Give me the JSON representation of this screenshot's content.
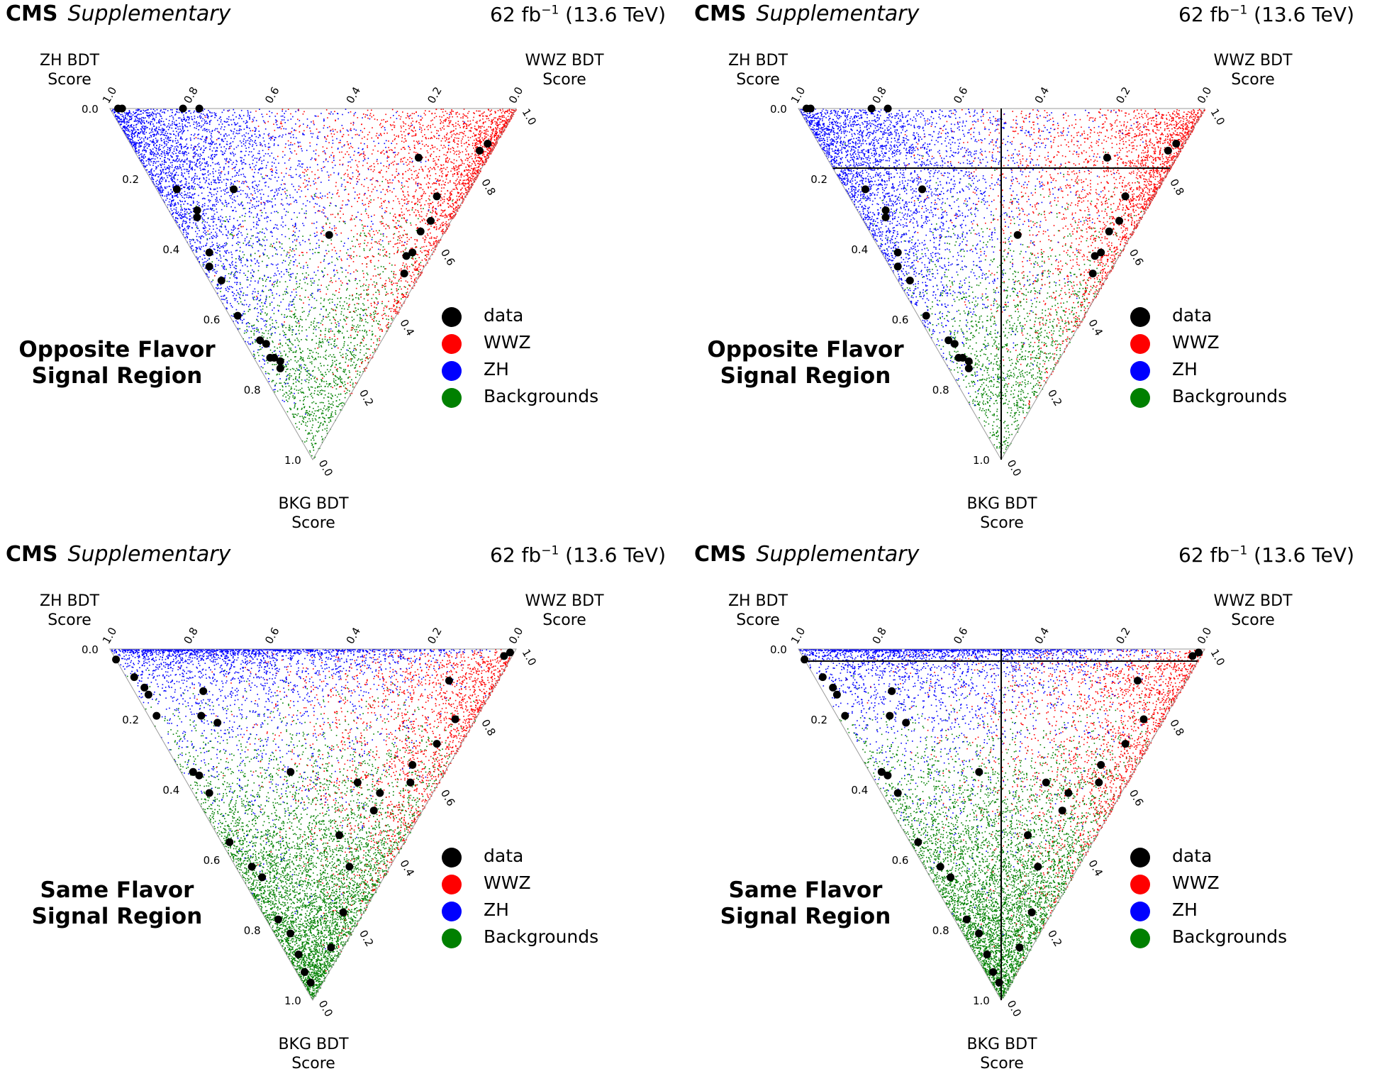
{
  "header": {
    "cms": "CMS",
    "supplementary": "Supplementary",
    "lumi": "62 fb",
    "lumi_exp": "−1",
    "energy": "(13.6 TeV)"
  },
  "vertex_labels": {
    "zh_1": "ZH BDT",
    "zh_2": "Score",
    "wwz_1": "WWZ BDT",
    "wwz_2": "Score",
    "bkg_1": "BKG BDT",
    "bkg_2": "Score"
  },
  "legend": [
    {
      "label": "data",
      "color": "#000000"
    },
    {
      "label": "WWZ",
      "color": "#ff0000"
    },
    {
      "label": "ZH",
      "color": "#0000ff"
    },
    {
      "label": "Backgrounds",
      "color": "#008000"
    }
  ],
  "ticks": {
    "top": [
      "1.0",
      "0.8",
      "0.6",
      "0.4",
      "0.2",
      "0.0"
    ],
    "left": [
      "0.0",
      "0.2",
      "0.4",
      "0.6",
      "0.8",
      "1.0"
    ],
    "right": [
      "1.0",
      "0.8",
      "0.6",
      "0.4",
      "0.2",
      "0.0"
    ]
  },
  "chart_data": [
    {
      "type": "scatter",
      "projection": "ternary",
      "axes": [
        "ZH BDT Score",
        "WWZ BDT Score",
        "BKG BDT Score"
      ],
      "region_line1": "Opposite Flavor",
      "region_line2": "Signal Region",
      "cut_lines": false,
      "mc_densities": {
        "WWZ": "high near WWZ vertex",
        "ZH": "high near ZH vertex",
        "Backgrounds": "concentrated near BKG vertex"
      },
      "data_points": [
        [
          0.98,
          0.02,
          0.0
        ],
        [
          0.97,
          0.03,
          0.0
        ],
        [
          0.82,
          0.18,
          0.0
        ],
        [
          0.78,
          0.22,
          0.0
        ],
        [
          0.58,
          0.19,
          0.23
        ],
        [
          0.64,
          0.07,
          0.29
        ],
        [
          0.72,
          0.05,
          0.23
        ],
        [
          0.63,
          0.06,
          0.31
        ],
        [
          0.55,
          0.04,
          0.41
        ],
        [
          0.53,
          0.02,
          0.45
        ],
        [
          0.48,
          0.03,
          0.49
        ],
        [
          0.39,
          0.02,
          0.59
        ],
        [
          0.3,
          0.04,
          0.66
        ],
        [
          0.28,
          0.05,
          0.67
        ],
        [
          0.25,
          0.04,
          0.71
        ],
        [
          0.24,
          0.05,
          0.71
        ],
        [
          0.22,
          0.06,
          0.72
        ],
        [
          0.21,
          0.05,
          0.74
        ],
        [
          0.02,
          0.88,
          0.1
        ],
        [
          0.03,
          0.85,
          0.12
        ],
        [
          0.17,
          0.69,
          0.14
        ],
        [
          0.07,
          0.68,
          0.25
        ],
        [
          0.05,
          0.63,
          0.32
        ],
        [
          0.06,
          0.59,
          0.35
        ],
        [
          0.05,
          0.54,
          0.41
        ],
        [
          0.06,
          0.52,
          0.42
        ],
        [
          0.04,
          0.49,
          0.47
        ],
        [
          0.28,
          0.36,
          0.36
        ]
      ]
    },
    {
      "type": "scatter",
      "projection": "ternary",
      "axes": [
        "ZH BDT Score",
        "WWZ BDT Score",
        "BKG BDT Score"
      ],
      "region_line1": "Opposite Flavor",
      "region_line2": "Signal Region",
      "cut_lines": true,
      "mc_densities": {
        "WWZ": "high near WWZ vertex",
        "ZH": "high near ZH vertex",
        "Backgrounds": "concentrated near BKG vertex"
      },
      "data_points": [
        [
          0.98,
          0.02,
          0.0
        ],
        [
          0.97,
          0.03,
          0.0
        ],
        [
          0.82,
          0.18,
          0.0
        ],
        [
          0.78,
          0.22,
          0.0
        ],
        [
          0.58,
          0.19,
          0.23
        ],
        [
          0.64,
          0.07,
          0.29
        ],
        [
          0.72,
          0.05,
          0.23
        ],
        [
          0.63,
          0.06,
          0.31
        ],
        [
          0.55,
          0.04,
          0.41
        ],
        [
          0.53,
          0.02,
          0.45
        ],
        [
          0.48,
          0.03,
          0.49
        ],
        [
          0.39,
          0.02,
          0.59
        ],
        [
          0.3,
          0.04,
          0.66
        ],
        [
          0.28,
          0.05,
          0.67
        ],
        [
          0.25,
          0.04,
          0.71
        ],
        [
          0.24,
          0.05,
          0.71
        ],
        [
          0.22,
          0.06,
          0.72
        ],
        [
          0.21,
          0.05,
          0.74
        ],
        [
          0.02,
          0.88,
          0.1
        ],
        [
          0.03,
          0.85,
          0.12
        ],
        [
          0.17,
          0.69,
          0.14
        ],
        [
          0.07,
          0.68,
          0.25
        ],
        [
          0.05,
          0.63,
          0.32
        ],
        [
          0.06,
          0.59,
          0.35
        ],
        [
          0.05,
          0.54,
          0.41
        ],
        [
          0.06,
          0.52,
          0.42
        ],
        [
          0.04,
          0.49,
          0.47
        ],
        [
          0.28,
          0.36,
          0.36
        ]
      ]
    },
    {
      "type": "scatter",
      "projection": "ternary",
      "axes": [
        "ZH BDT Score",
        "WWZ BDT Score",
        "BKG BDT Score"
      ],
      "region_line1": "Same Flavor",
      "region_line2": "Signal Region",
      "cut_lines": false,
      "mc_densities": {
        "WWZ": "near WWZ vertex",
        "ZH": "along top edge",
        "Backgrounds": "dominant toward BKG vertex"
      },
      "data_points": [
        [
          0.97,
          0.0,
          0.03
        ],
        [
          0.9,
          0.02,
          0.08
        ],
        [
          0.86,
          0.03,
          0.11
        ],
        [
          0.84,
          0.03,
          0.13
        ],
        [
          0.71,
          0.17,
          0.12
        ],
        [
          0.79,
          0.02,
          0.19
        ],
        [
          0.68,
          0.13,
          0.19
        ],
        [
          0.63,
          0.16,
          0.21
        ],
        [
          0.62,
          0.03,
          0.35
        ],
        [
          0.6,
          0.04,
          0.36
        ],
        [
          0.55,
          0.04,
          0.41
        ],
        [
          0.43,
          0.02,
          0.55
        ],
        [
          0.34,
          0.04,
          0.62
        ],
        [
          0.3,
          0.05,
          0.65
        ],
        [
          0.2,
          0.03,
          0.77
        ],
        [
          0.15,
          0.04,
          0.81
        ],
        [
          0.1,
          0.03,
          0.87
        ],
        [
          0.06,
          0.02,
          0.92
        ],
        [
          0.03,
          0.02,
          0.95
        ],
        [
          0.02,
          0.96,
          0.02
        ],
        [
          0.01,
          0.98,
          0.01
        ],
        [
          0.12,
          0.79,
          0.09
        ],
        [
          0.05,
          0.75,
          0.2
        ],
        [
          0.06,
          0.67,
          0.27
        ],
        [
          0.09,
          0.58,
          0.33
        ],
        [
          0.07,
          0.55,
          0.38
        ],
        [
          0.13,
          0.46,
          0.41
        ],
        [
          0.12,
          0.42,
          0.46
        ],
        [
          0.17,
          0.3,
          0.53
        ],
        [
          0.1,
          0.28,
          0.62
        ],
        [
          0.05,
          0.2,
          0.75
        ],
        [
          0.03,
          0.12,
          0.85
        ],
        [
          0.38,
          0.27,
          0.35
        ],
        [
          0.2,
          0.42,
          0.38
        ]
      ]
    },
    {
      "type": "scatter",
      "projection": "ternary",
      "axes": [
        "ZH BDT Score",
        "WWZ BDT Score",
        "BKG BDT Score"
      ],
      "region_line1": "Same Flavor",
      "region_line2": "Signal Region",
      "cut_lines": true,
      "mc_densities": {
        "WWZ": "near WWZ vertex",
        "ZH": "along top edge",
        "Backgrounds": "dominant toward BKG vertex"
      },
      "data_points": [
        [
          0.97,
          0.0,
          0.03
        ],
        [
          0.9,
          0.02,
          0.08
        ],
        [
          0.86,
          0.03,
          0.11
        ],
        [
          0.84,
          0.03,
          0.13
        ],
        [
          0.71,
          0.17,
          0.12
        ],
        [
          0.79,
          0.02,
          0.19
        ],
        [
          0.68,
          0.13,
          0.19
        ],
        [
          0.63,
          0.16,
          0.21
        ],
        [
          0.62,
          0.03,
          0.35
        ],
        [
          0.6,
          0.04,
          0.36
        ],
        [
          0.55,
          0.04,
          0.41
        ],
        [
          0.43,
          0.02,
          0.55
        ],
        [
          0.34,
          0.04,
          0.62
        ],
        [
          0.3,
          0.05,
          0.65
        ],
        [
          0.2,
          0.03,
          0.77
        ],
        [
          0.15,
          0.04,
          0.81
        ],
        [
          0.1,
          0.03,
          0.87
        ],
        [
          0.06,
          0.02,
          0.92
        ],
        [
          0.03,
          0.02,
          0.95
        ],
        [
          0.02,
          0.96,
          0.02
        ],
        [
          0.01,
          0.98,
          0.01
        ],
        [
          0.12,
          0.79,
          0.09
        ],
        [
          0.05,
          0.75,
          0.2
        ],
        [
          0.06,
          0.67,
          0.27
        ],
        [
          0.09,
          0.58,
          0.33
        ],
        [
          0.07,
          0.55,
          0.38
        ],
        [
          0.13,
          0.46,
          0.41
        ],
        [
          0.12,
          0.42,
          0.46
        ],
        [
          0.17,
          0.3,
          0.53
        ],
        [
          0.1,
          0.28,
          0.62
        ],
        [
          0.05,
          0.2,
          0.75
        ],
        [
          0.03,
          0.12,
          0.85
        ],
        [
          0.38,
          0.27,
          0.35
        ],
        [
          0.2,
          0.42,
          0.38
        ]
      ]
    }
  ]
}
